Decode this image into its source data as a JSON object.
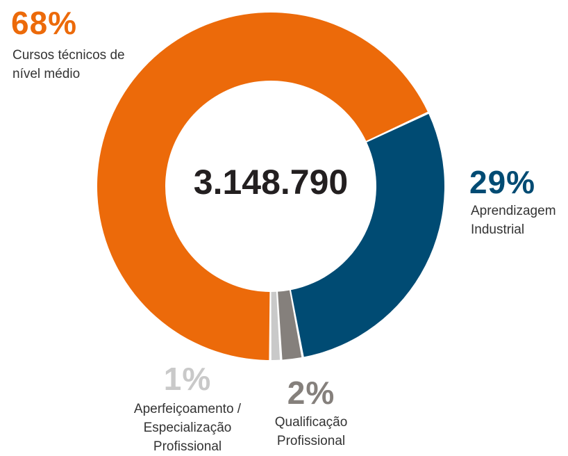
{
  "chart_data": {
    "type": "pie",
    "donut": true,
    "center_text": "3.148.790",
    "categories": [
      "Cursos técnicos de nível médio",
      "Aprendizagem Industrial",
      "Qualificação Profissional",
      "Aperfeiçoamento / Especialização Profissional"
    ],
    "values": [
      68,
      29,
      2,
      1
    ],
    "value_labels": [
      "68%",
      "29%",
      "2%",
      "1%"
    ],
    "colors": [
      "#ec6a0a",
      "#004b73",
      "#85807c",
      "#c9c9c9"
    ]
  }
}
